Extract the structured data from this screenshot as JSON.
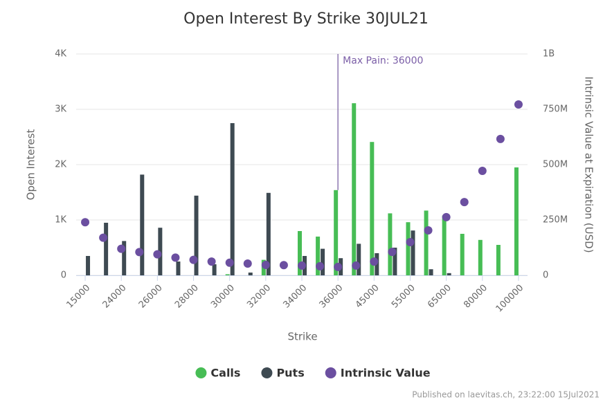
{
  "chart_data": {
    "type": "bar",
    "title": "Open Interest By Strike 30JUL21",
    "x_label": "Strike",
    "y_label": "Open Interest",
    "y2_label": "Intrinsic Value at Expiration (USD)",
    "categories": [
      "15000",
      null,
      "24000",
      null,
      "26000",
      null,
      "28000",
      null,
      "30000",
      null,
      "32000",
      null,
      "34000",
      null,
      "36000",
      null,
      "45000",
      null,
      "55000",
      null,
      "65000",
      null,
      "80000",
      null,
      "100000"
    ],
    "series": [
      {
        "name": "Calls",
        "color": "#47bd55",
        "type": "bar",
        "values": [
          0,
          0,
          0,
          0,
          0,
          0,
          0,
          0,
          20,
          0,
          280,
          0,
          800,
          700,
          1540,
          3110,
          2410,
          1120,
          960,
          1170,
          1080,
          750,
          640,
          550,
          1950
        ]
      },
      {
        "name": "Puts",
        "color": "#3e4a52",
        "type": "bar",
        "values": [
          350,
          950,
          620,
          1820,
          860,
          250,
          1440,
          200,
          2750,
          50,
          1490,
          0,
          350,
          480,
          310,
          570,
          400,
          500,
          810,
          110,
          40,
          0,
          0,
          0,
          0
        ]
      },
      {
        "name": "Intrinsic Value",
        "color": "#6b4fa0",
        "type": "scatter",
        "axis": "y2",
        "values": [
          240000000,
          170000000,
          120000000,
          105000000,
          95000000,
          80000000,
          70000000,
          62000000,
          57000000,
          53000000,
          47000000,
          46000000,
          44000000,
          41000000,
          38000000,
          44000000,
          62000000,
          106000000,
          150000000,
          203000000,
          263000000,
          331000000,
          472000000,
          616000000,
          772000000
        ]
      }
    ],
    "ylim": [
      0,
      4000
    ],
    "yticks": [
      0,
      {
        "value": 1000,
        "label": "1K"
      },
      {
        "value": 2000,
        "label": "2K"
      },
      {
        "value": 3000,
        "label": "3K"
      },
      {
        "value": 4000,
        "label": "4K"
      }
    ],
    "y2lim": [
      0,
      1000000000
    ],
    "y2ticks": [
      0,
      {
        "value": 250000000,
        "label": "250M"
      },
      {
        "value": 500000000,
        "label": "500M"
      },
      {
        "value": 750000000,
        "label": "750M"
      },
      {
        "value": 1000000000,
        "label": "1B"
      }
    ],
    "grid": true,
    "legend": "bottom",
    "annotations": [
      {
        "text": "Max Pain: 36000",
        "x": "36000"
      }
    ],
    "footer": "Published on laevitas.ch, 23:22:00 15Jul2021"
  }
}
